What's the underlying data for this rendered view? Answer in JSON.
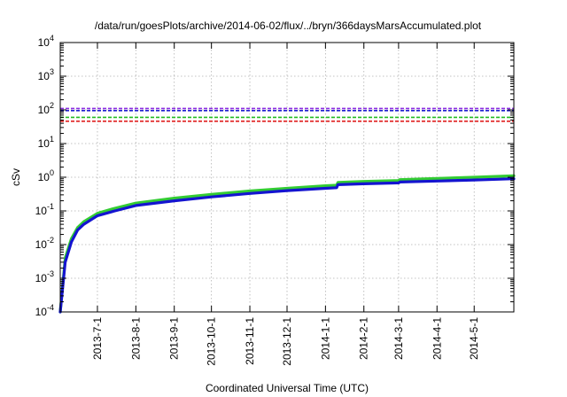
{
  "chart_data": {
    "type": "line",
    "title": "/data/run/goesPlots/archive/2014-06-02/flux/../bryn/366daysMarsAccumulated.plot",
    "xlabel": "Coordinated Universal Time (UTC)",
    "ylabel": "cSv",
    "yscale": "log",
    "ylim": [
      0.0001,
      10000
    ],
    "y_ticks": [
      {
        "value": 0.0001,
        "base": "10",
        "exp": "-4"
      },
      {
        "value": 0.001,
        "base": "10",
        "exp": "-3"
      },
      {
        "value": 0.01,
        "base": "10",
        "exp": "-2"
      },
      {
        "value": 0.1,
        "base": "10",
        "exp": "-1"
      },
      {
        "value": 1,
        "base": "10",
        "exp": "0"
      },
      {
        "value": 10,
        "base": "10",
        "exp": "1"
      },
      {
        "value": 100,
        "base": "10",
        "exp": "2"
      },
      {
        "value": 1000,
        "base": "10",
        "exp": "3"
      },
      {
        "value": 10000,
        "base": "10",
        "exp": "4"
      }
    ],
    "xlim": [
      "2013-06-01",
      "2014-06-02"
    ],
    "x_ticks": [
      "2013-7-1",
      "2013-8-1",
      "2013-9-1",
      "2013-10-1",
      "2013-11-1",
      "2013-12-1",
      "2014-1-1",
      "2014-2-1",
      "2014-3-1",
      "2014-4-1",
      "2014-5-1"
    ],
    "x_tick_dates": [
      "2013-07-01",
      "2013-08-01",
      "2013-09-01",
      "2013-10-01",
      "2013-11-01",
      "2013-12-01",
      "2014-01-01",
      "2014-02-01",
      "2014-03-01",
      "2014-04-01",
      "2014-05-01"
    ],
    "grid": true,
    "legend": "none",
    "reference_lines": [
      {
        "y": 110,
        "color": "#8a2be2"
      },
      {
        "y": 95,
        "color": "#1f1fd0"
      },
      {
        "y": 60,
        "color": "#22bb22"
      },
      {
        "y": 46,
        "color": "#e02020"
      }
    ],
    "series": [
      {
        "color": "#33cc33",
        "x": [
          "2013-06-01",
          "2013-06-05",
          "2013-06-10",
          "2013-06-15",
          "2013-06-20",
          "2013-07-01",
          "2013-07-15",
          "2013-08-01",
          "2013-09-01",
          "2013-10-01",
          "2013-11-01",
          "2013-12-01",
          "2014-01-01",
          "2014-01-10",
          "2014-01-11",
          "2014-02-01",
          "2014-03-01",
          "2014-03-02",
          "2014-04-01",
          "2014-05-01",
          "2014-06-02"
        ],
        "y": [
          0.0001,
          0.004,
          0.015,
          0.032,
          0.048,
          0.085,
          0.12,
          0.17,
          0.24,
          0.31,
          0.39,
          0.47,
          0.56,
          0.58,
          0.7,
          0.75,
          0.8,
          0.85,
          0.92,
          1.0,
          1.1
        ]
      },
      {
        "color": "#1414d0",
        "x": [
          "2013-06-01",
          "2013-06-05",
          "2013-06-10",
          "2013-06-15",
          "2013-06-20",
          "2013-07-01",
          "2013-07-15",
          "2013-08-01",
          "2013-09-01",
          "2013-10-01",
          "2013-11-01",
          "2013-12-01",
          "2014-01-01",
          "2014-01-10",
          "2014-01-11",
          "2014-02-01",
          "2014-03-01",
          "2014-03-02",
          "2014-04-01",
          "2014-05-01",
          "2014-06-02"
        ],
        "y": [
          0.0001,
          0.003,
          0.012,
          0.027,
          0.04,
          0.072,
          0.1,
          0.145,
          0.2,
          0.26,
          0.33,
          0.4,
          0.47,
          0.49,
          0.6,
          0.64,
          0.68,
          0.72,
          0.77,
          0.83,
          0.9
        ]
      }
    ]
  }
}
